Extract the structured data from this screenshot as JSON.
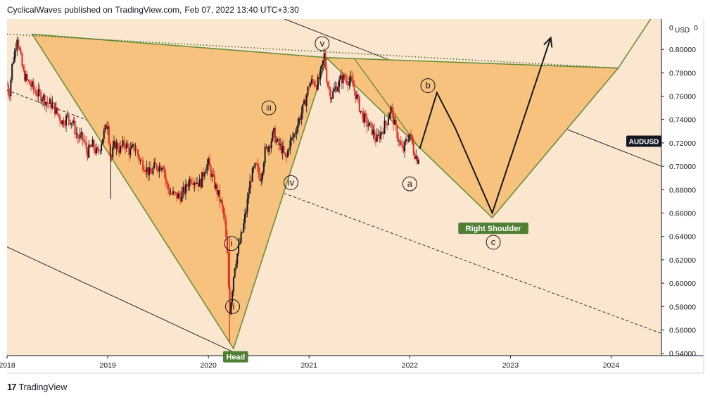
{
  "header": {
    "author": "CyclicalWaves",
    "published_text": "published on",
    "platform": "TradingView.com,",
    "datetime": "Feb 07, 2022 13:40 UTC+3:30"
  },
  "footer": {
    "logo_glyph": "17",
    "brand": "TradingView"
  },
  "colors": {
    "background": "#fbe6cf",
    "triangle_fill": "#f7c27e",
    "triangle_stroke": "#6a8f3a",
    "candle_up": "#131722",
    "candle_down": "#e5261f",
    "label_bg": "#4f7f33",
    "symbol_tag_bg": "#131722"
  },
  "chart_data": {
    "type": "candlestick",
    "symbol": "AUDUSD",
    "currency_unit": "USD",
    "y_axis_ticks": [
      "0.54000",
      "0.56000",
      "0.58000",
      "0.60000",
      "0.62000",
      "0.64000",
      "0.66000",
      "0.68000",
      "0.70000",
      "0.72000",
      "0.74000",
      "0.76000",
      "0.78000",
      "0.80000"
    ],
    "y_axis_top_partial": "0",
    "ylim": [
      0.538,
      0.826
    ],
    "x_axis_ticks": [
      "2018",
      "2019",
      "2020",
      "2021",
      "2022",
      "2023",
      "2024"
    ],
    "xlim": [
      2018.0,
      2024.5
    ],
    "price_tag": "AUDUSD",
    "price_path": [
      [
        2018.0,
        0.77
      ],
      [
        2018.02,
        0.76
      ],
      [
        2018.05,
        0.786
      ],
      [
        2018.08,
        0.8
      ],
      [
        2018.1,
        0.812
      ],
      [
        2018.13,
        0.795
      ],
      [
        2018.16,
        0.78
      ],
      [
        2018.2,
        0.773
      ],
      [
        2018.25,
        0.768
      ],
      [
        2018.3,
        0.762
      ],
      [
        2018.35,
        0.76
      ],
      [
        2018.4,
        0.754
      ],
      [
        2018.45,
        0.753
      ],
      [
        2018.5,
        0.745
      ],
      [
        2018.55,
        0.738
      ],
      [
        2018.6,
        0.742
      ],
      [
        2018.65,
        0.738
      ],
      [
        2018.7,
        0.725
      ],
      [
        2018.75,
        0.724
      ],
      [
        2018.8,
        0.712
      ],
      [
        2018.85,
        0.718
      ],
      [
        2018.9,
        0.71
      ],
      [
        2018.95,
        0.725
      ],
      [
        2019.0,
        0.738
      ],
      [
        2019.03,
        0.705
      ],
      [
        2019.07,
        0.72
      ],
      [
        2019.12,
        0.714
      ],
      [
        2019.17,
        0.72
      ],
      [
        2019.22,
        0.712
      ],
      [
        2019.27,
        0.717
      ],
      [
        2019.32,
        0.705
      ],
      [
        2019.37,
        0.7
      ],
      [
        2019.42,
        0.693
      ],
      [
        2019.47,
        0.7
      ],
      [
        2019.52,
        0.7
      ],
      [
        2019.55,
        0.703
      ],
      [
        2019.58,
        0.685
      ],
      [
        2019.62,
        0.677
      ],
      [
        2019.67,
        0.675
      ],
      [
        2019.72,
        0.674
      ],
      [
        2019.77,
        0.68
      ],
      [
        2019.82,
        0.69
      ],
      [
        2019.87,
        0.688
      ],
      [
        2019.92,
        0.685
      ],
      [
        2019.97,
        0.7
      ],
      [
        2020.0,
        0.702
      ],
      [
        2020.04,
        0.69
      ],
      [
        2020.08,
        0.68
      ],
      [
        2020.12,
        0.67
      ],
      [
        2020.16,
        0.655
      ],
      [
        2020.19,
        0.62
      ],
      [
        2020.21,
        0.575
      ],
      [
        2020.23,
        0.59
      ],
      [
        2020.26,
        0.615
      ],
      [
        2020.3,
        0.63
      ],
      [
        2020.34,
        0.645
      ],
      [
        2020.38,
        0.665
      ],
      [
        2020.42,
        0.69
      ],
      [
        2020.47,
        0.7
      ],
      [
        2020.52,
        0.69
      ],
      [
        2020.56,
        0.712
      ],
      [
        2020.6,
        0.718
      ],
      [
        2020.65,
        0.728
      ],
      [
        2020.68,
        0.72
      ],
      [
        2020.73,
        0.715
      ],
      [
        2020.77,
        0.705
      ],
      [
        2020.8,
        0.718
      ],
      [
        2020.85,
        0.727
      ],
      [
        2020.9,
        0.74
      ],
      [
        2020.95,
        0.752
      ],
      [
        2021.0,
        0.77
      ],
      [
        2021.04,
        0.773
      ],
      [
        2021.08,
        0.77
      ],
      [
        2021.12,
        0.78
      ],
      [
        2021.15,
        0.795
      ],
      [
        2021.18,
        0.772
      ],
      [
        2021.22,
        0.76
      ],
      [
        2021.27,
        0.768
      ],
      [
        2021.32,
        0.775
      ],
      [
        2021.37,
        0.775
      ],
      [
        2021.42,
        0.772
      ],
      [
        2021.47,
        0.76
      ],
      [
        2021.52,
        0.745
      ],
      [
        2021.57,
        0.737
      ],
      [
        2021.62,
        0.732
      ],
      [
        2021.67,
        0.722
      ],
      [
        2021.72,
        0.73
      ],
      [
        2021.77,
        0.738
      ],
      [
        2021.81,
        0.75
      ],
      [
        2021.85,
        0.735
      ],
      [
        2021.89,
        0.723
      ],
      [
        2021.93,
        0.712
      ],
      [
        2021.96,
        0.72
      ],
      [
        2022.0,
        0.728
      ],
      [
        2022.04,
        0.713
      ],
      [
        2022.08,
        0.705
      ],
      [
        2022.1,
        0.715
      ]
    ],
    "projection_path": [
      [
        2022.1,
        0.715
      ],
      [
        2022.27,
        0.763
      ],
      [
        2022.45,
        0.733
      ],
      [
        2022.82,
        0.66
      ],
      [
        2023.4,
        0.81
      ]
    ],
    "left_triangle": [
      [
        2018.25,
        0.813
      ],
      [
        2020.25,
        0.544
      ],
      [
        2021.18,
        0.793
      ]
    ],
    "right_triangle": [
      [
        2021.17,
        0.793
      ],
      [
        2022.82,
        0.656
      ],
      [
        2024.07,
        0.784
      ]
    ],
    "neckline": [
      [
        2018.0,
        0.813
      ],
      [
        2024.07,
        0.784
      ]
    ],
    "right_shoulder_wedge": [
      [
        2021.17,
        0.793
      ],
      [
        2021.45,
        0.792
      ],
      [
        2022.1,
        0.715
      ]
    ],
    "wave_labels": [
      {
        "text": "v",
        "x": 2021.13,
        "y": 0.805
      },
      {
        "text": "iii",
        "x": 2020.6,
        "y": 0.75
      },
      {
        "text": "iv",
        "x": 2020.82,
        "y": 0.686
      },
      {
        "text": "i",
        "x": 2020.23,
        "y": 0.634
      },
      {
        "text": "ii",
        "x": 2020.24,
        "y": 0.58
      },
      {
        "text": "b",
        "x": 2022.18,
        "y": 0.769
      },
      {
        "text": "a",
        "x": 2022.0,
        "y": 0.685
      },
      {
        "text": "c",
        "x": 2022.83,
        "y": 0.635
      }
    ],
    "annotations": [
      {
        "text": "Right Shoulder",
        "x": 2022.83,
        "y": 0.647
      },
      {
        "text": "Head",
        "x": 2020.27,
        "y": 0.537
      }
    ]
  }
}
